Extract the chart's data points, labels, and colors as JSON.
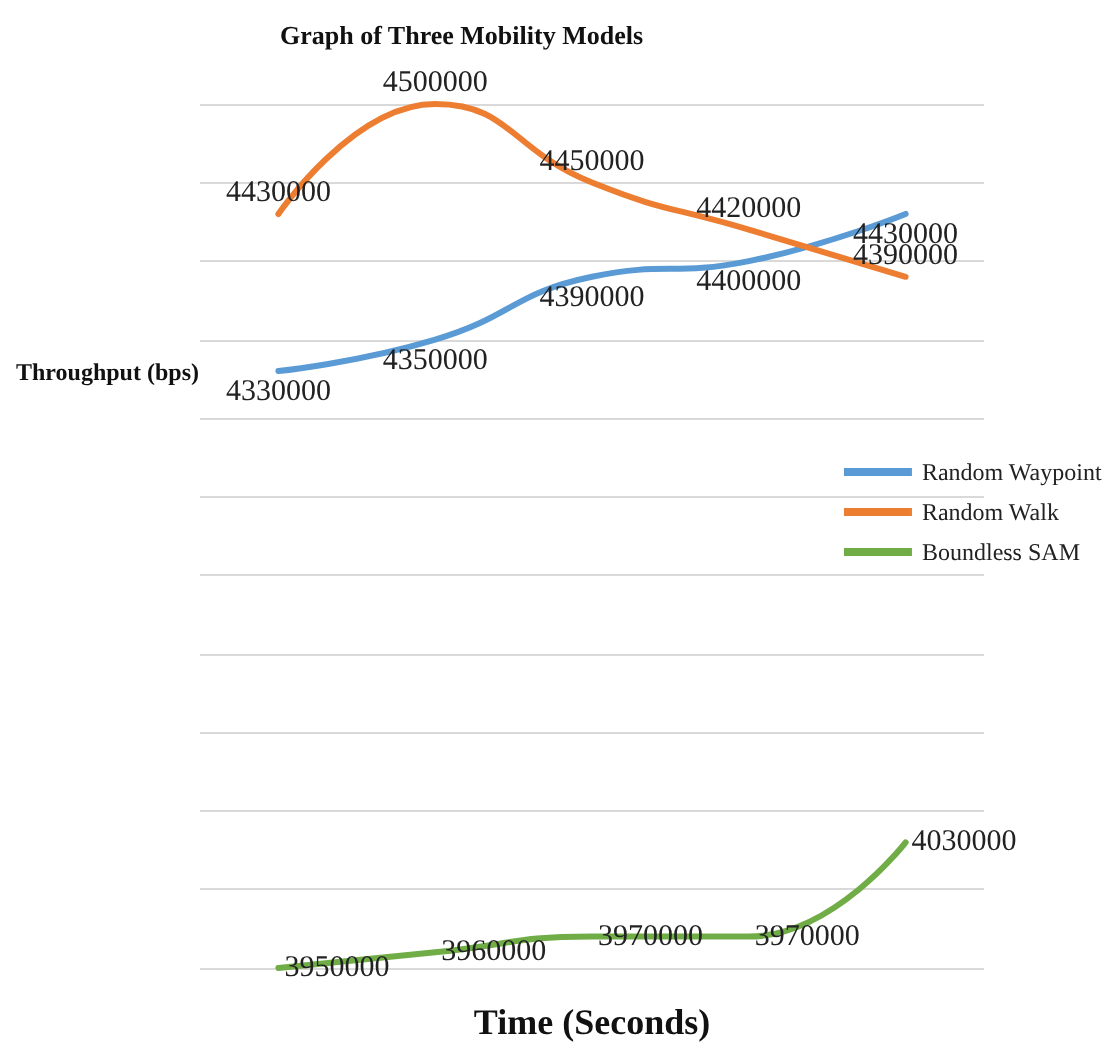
{
  "chart_data": {
    "type": "line",
    "title": "Graph of Three Mobility Models",
    "xlabel": "Time (Seconds)",
    "ylabel": "Throughput (bps)",
    "categories": [
      null,
      null,
      null,
      null,
      null
    ],
    "series": [
      {
        "name": "Random Waypoint",
        "color": "#5b9bd5",
        "values": [
          4330000,
          4350000,
          4390000,
          4400000,
          4430000
        ]
      },
      {
        "name": "Random Walk",
        "color": "#ed7d31",
        "values": [
          4430000,
          4500000,
          4450000,
          4420000,
          4390000
        ]
      },
      {
        "name": "Boundless SAM",
        "color": "#70ad47",
        "values": [
          3950000,
          3960000,
          3970000,
          3970000,
          4030000
        ]
      }
    ],
    "grid": "y",
    "legend": "right",
    "tick_labels": false,
    "data_labels": true,
    "marker": "none",
    "line_style": "solid"
  }
}
